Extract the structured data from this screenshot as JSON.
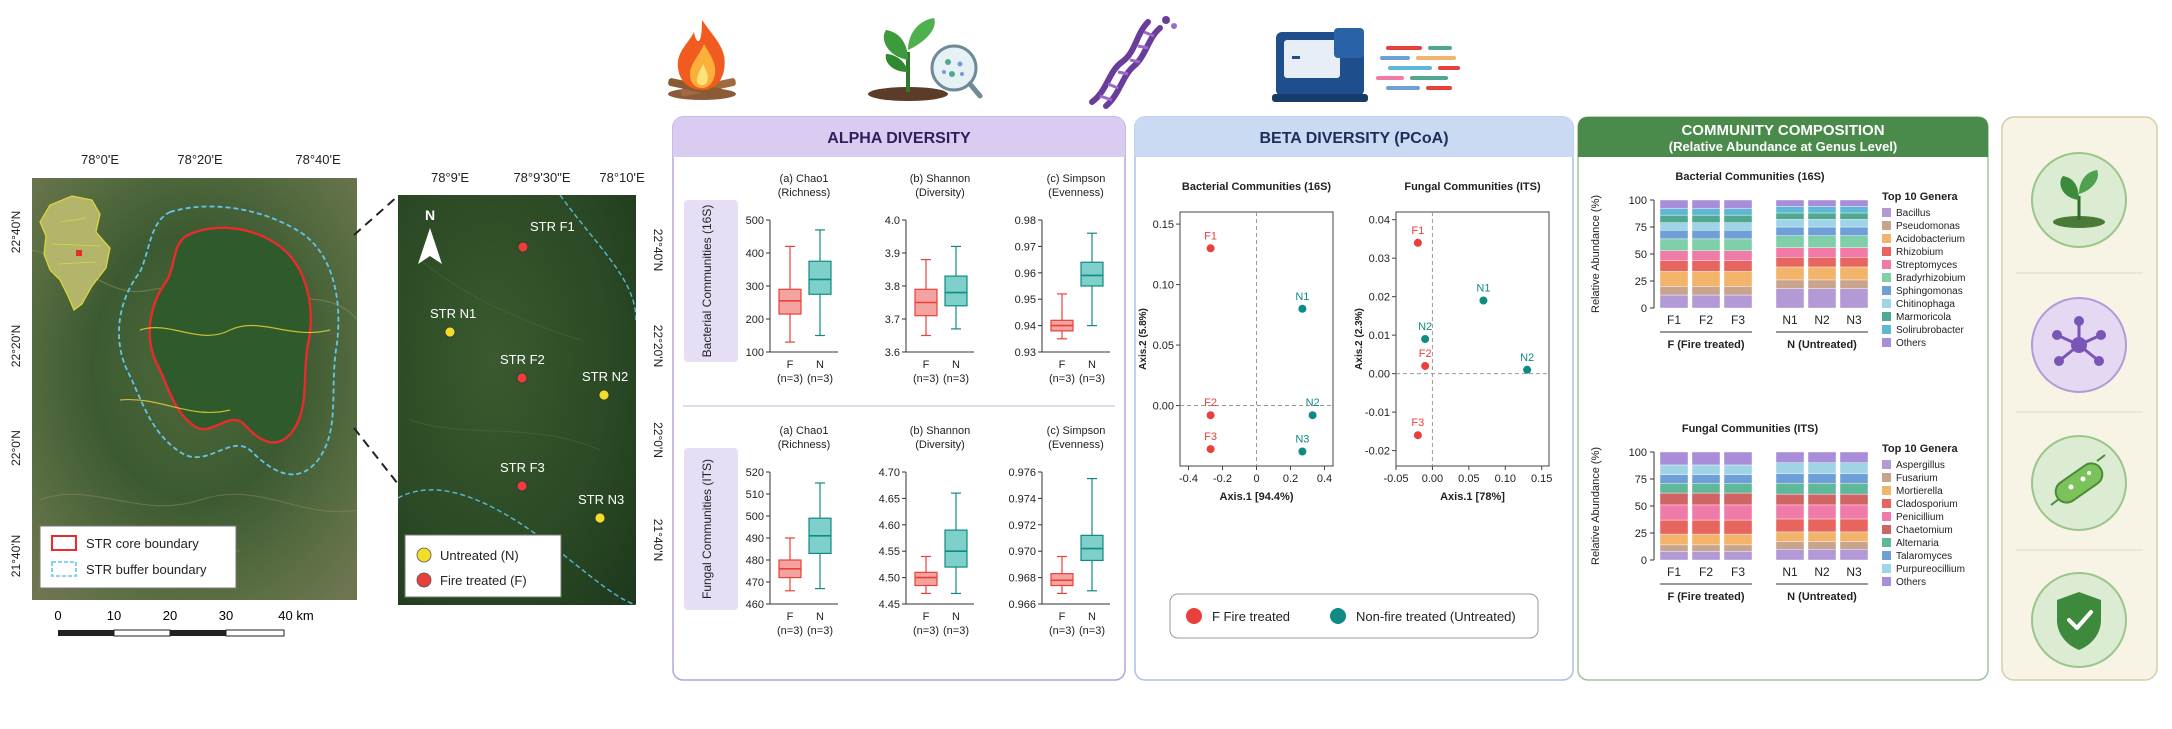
{
  "map_large": {
    "lon_ticks": [
      "78°0'E",
      "78°20'E",
      "78°40'E"
    ],
    "lat_ticks": [
      "22°40'N",
      "22°20'N",
      "22°0'N",
      "21°40'N"
    ],
    "legend": {
      "core": "STR core boundary",
      "buffer": "STR buffer boundary"
    },
    "scalebar": {
      "ticks": [
        "0",
        "10",
        "20",
        "30"
      ],
      "last": "40 km"
    }
  },
  "map_zoom": {
    "lon_ticks": [
      "78°9'E",
      "78°9'30\"E",
      "78°10'E"
    ],
    "lat_ticks": [
      "22°40'N",
      "22°20'N",
      "22°0'N",
      "21°40'N"
    ],
    "north": "N",
    "sites": [
      {
        "label": "STR F1",
        "group": "F"
      },
      {
        "label": "STR N1",
        "group": "N"
      },
      {
        "label": "STR F2",
        "group": "F"
      },
      {
        "label": "STR N2",
        "group": "N"
      },
      {
        "label": "STR F3",
        "group": "F"
      },
      {
        "label": "STR N3",
        "group": "N"
      }
    ],
    "legend": {
      "untreated": "Untreated (N)",
      "fire": "Fire treated (F)"
    }
  },
  "colors": {
    "fire": "#e8403a",
    "fire_box": "#f5a3a0",
    "untreated": "#0f8a84",
    "untreated_box": "#7fcfcb",
    "alpha_bg": "#d9ccf0",
    "beta_bg": "#c9daf2",
    "comm_bg": "#4a8a4a",
    "yellow": "#f2de29"
  },
  "alpha": {
    "title": "ALPHA DIVERSITY",
    "rows": [
      "Bacterial Communities (16S)",
      "Fungal Communities (ITS)"
    ],
    "metric_titles": [
      "(a) Chao1",
      "(b) Shannon",
      "(c) Simpson"
    ],
    "metric_subtitles": [
      "(Richness)",
      "(Diversity)",
      "(Evenness)"
    ],
    "group_labels": [
      "F",
      "N"
    ],
    "n_labels": [
      "(n=3)",
      "(n=3)"
    ],
    "chart_data": [
      {
        "type": "box",
        "title": "(a) Chao1",
        "ylim": [
          100,
          500
        ],
        "ticks": [
          100,
          200,
          300,
          400,
          500
        ],
        "series": [
          {
            "name": "F",
            "min": 130,
            "q1": 215,
            "median": 255,
            "q3": 290,
            "max": 420
          },
          {
            "name": "N",
            "min": 150,
            "q1": 275,
            "median": 320,
            "q3": 375,
            "max": 470
          }
        ]
      },
      {
        "type": "box",
        "title": "(b) Shannon",
        "ylim": [
          3.6,
          4.0
        ],
        "ticks": [
          3.6,
          3.7,
          3.8,
          3.9,
          4.0
        ],
        "series": [
          {
            "name": "F",
            "min": 3.65,
            "q1": 3.71,
            "median": 3.75,
            "q3": 3.79,
            "max": 3.88
          },
          {
            "name": "N",
            "min": 3.67,
            "q1": 3.74,
            "median": 3.78,
            "q3": 3.83,
            "max": 3.92
          }
        ]
      },
      {
        "type": "box",
        "title": "(c) Simpson",
        "ylim": [
          0.93,
          0.98
        ],
        "ticks": [
          0.93,
          0.94,
          0.95,
          0.96,
          0.97,
          0.98
        ],
        "series": [
          {
            "name": "F",
            "min": 0.935,
            "q1": 0.938,
            "median": 0.94,
            "q3": 0.942,
            "max": 0.952
          },
          {
            "name": "N",
            "min": 0.94,
            "q1": 0.955,
            "median": 0.959,
            "q3": 0.964,
            "max": 0.975
          }
        ]
      },
      {
        "type": "box",
        "title": "(a) Chao1",
        "ylim": [
          460,
          520
        ],
        "ticks": [
          460,
          470,
          480,
          490,
          500,
          510,
          520
        ],
        "series": [
          {
            "name": "F",
            "min": 466,
            "q1": 472,
            "median": 476,
            "q3": 480,
            "max": 490
          },
          {
            "name": "N",
            "min": 467,
            "q1": 483,
            "median": 491,
            "q3": 499,
            "max": 515
          }
        ]
      },
      {
        "type": "box",
        "title": "(b) Shannon",
        "ylim": [
          4.45,
          4.7
        ],
        "ticks": [
          4.45,
          4.5,
          4.55,
          4.6,
          4.65,
          4.7
        ],
        "series": [
          {
            "name": "F",
            "min": 4.47,
            "q1": 4.485,
            "median": 4.5,
            "q3": 4.51,
            "max": 4.54
          },
          {
            "name": "N",
            "min": 4.47,
            "q1": 4.52,
            "median": 4.55,
            "q3": 4.59,
            "max": 4.66
          }
        ]
      },
      {
        "type": "box",
        "title": "(c) Simpson",
        "ylim": [
          0.966,
          0.976
        ],
        "ticks": [
          0.966,
          0.968,
          0.97,
          0.972,
          0.974,
          0.976
        ],
        "series": [
          {
            "name": "F",
            "min": 0.9668,
            "q1": 0.9674,
            "median": 0.9678,
            "q3": 0.9683,
            "max": 0.9696
          },
          {
            "name": "N",
            "min": 0.967,
            "q1": 0.9693,
            "median": 0.9702,
            "q3": 0.9712,
            "max": 0.9755
          }
        ]
      }
    ]
  },
  "beta": {
    "title": "BETA DIVERSITY (PCoA)",
    "chart_data": [
      {
        "type": "scatter",
        "title": "Bacterial Communities (16S)",
        "xlabel": "Axis.1   [94.4%)",
        "ylabel": "Axis.2  (5.8%)",
        "xlim": [
          -0.45,
          0.45
        ],
        "ylim": [
          -0.05,
          0.16
        ],
        "xticks": [
          -0.4,
          -0.2,
          0,
          0.2,
          0.4
        ],
        "xtick_labels": [
          "-0.4",
          "-0.2",
          "0",
          "0.2",
          "0.4"
        ],
        "yticks": [
          0,
          0.05,
          0.1,
          0.15
        ],
        "ytick_labels": [
          "0.00",
          "0.05",
          "0.10",
          "0.15"
        ],
        "points": [
          {
            "label": "F1",
            "x": -0.27,
            "y": 0.13,
            "group": "F"
          },
          {
            "label": "N1",
            "x": 0.27,
            "y": 0.08,
            "group": "N"
          },
          {
            "label": "F2",
            "x": -0.27,
            "y": -0.008,
            "group": "F"
          },
          {
            "label": "N2",
            "x": 0.33,
            "y": -0.008,
            "group": "N"
          },
          {
            "label": "F3",
            "x": -0.27,
            "y": -0.036,
            "group": "F"
          },
          {
            "label": "N3",
            "x": 0.27,
            "y": -0.038,
            "group": "N"
          }
        ]
      },
      {
        "type": "scatter",
        "title": "Fungal Communities (ITS)",
        "xlabel": "Axis.1   [78%]",
        "ylabel": "Axis.2  (2.3%)",
        "xlim": [
          -0.05,
          0.16
        ],
        "ylim": [
          -0.024,
          0.042
        ],
        "xticks": [
          -0.05,
          0,
          0.05,
          0.1,
          0.15
        ],
        "xtick_labels": [
          "-0.05",
          "0.00",
          "0.05",
          "0.10",
          "0.15"
        ],
        "yticks": [
          -0.02,
          -0.01,
          0,
          0.01,
          0.02,
          0.03,
          0.04
        ],
        "ytick_labels": [
          "-0.02",
          "-0.01",
          "0.00",
          "0.01",
          "0.02",
          "0.03",
          "0.04"
        ],
        "points": [
          {
            "label": "F1",
            "x": -0.02,
            "y": 0.034,
            "group": "F"
          },
          {
            "label": "N1",
            "x": 0.07,
            "y": 0.019,
            "group": "N"
          },
          {
            "label": "N2",
            "x": -0.01,
            "y": 0.009,
            "group": "N"
          },
          {
            "label": "F2",
            "x": -0.01,
            "y": 0.002,
            "group": "F"
          },
          {
            "label": "N2",
            "x": 0.13,
            "y": 0.001,
            "group": "N"
          },
          {
            "label": "F3",
            "x": -0.02,
            "y": -0.016,
            "group": "F"
          }
        ]
      }
    ],
    "legend": {
      "fire": "F  Fire treated",
      "untreated": "Non-fire treated (Untreated)"
    }
  },
  "composition": {
    "title": "COMMUNITY COMPOSITION",
    "subtitle": "(Relative Abundance at Genus Level)",
    "ylabel": "Relative Abundance (%)",
    "yticks": [
      0,
      25,
      50,
      75,
      100
    ],
    "samples": [
      "F1",
      "F2",
      "F3",
      "N1",
      "N2",
      "N3"
    ],
    "group_labels": [
      "F (Fire treated)",
      "N (Untreated)"
    ],
    "legend_title": "Top 10 Genera",
    "chart_data": [
      {
        "type": "bar",
        "stacked": true,
        "title": "Bacterial Communities (16S)",
        "categories": [
          "F1",
          "F2",
          "F3",
          "N1",
          "N2",
          "N3"
        ],
        "series": [
          {
            "name": "Bacillus",
            "color": "#b39ad6",
            "values": [
              12,
              12,
              12,
              18,
              18,
              18
            ]
          },
          {
            "name": "Pseudomonas",
            "color": "#c9a48c",
            "values": [
              8,
              8,
              8,
              8,
              8,
              8
            ]
          },
          {
            "name": "Acidobacterium",
            "color": "#f2b36b",
            "values": [
              14,
              14,
              14,
              12,
              12,
              12
            ]
          },
          {
            "name": "Rhizobium",
            "color": "#e8645f",
            "values": [
              10,
              10,
              10,
              9,
              9,
              9
            ]
          },
          {
            "name": "Streptomyces",
            "color": "#f07aa8",
            "values": [
              9,
              9,
              9,
              9,
              9,
              9
            ]
          },
          {
            "name": "Bradyrhizobium",
            "color": "#7fcfa8",
            "values": [
              11,
              11,
              11,
              11,
              11,
              11
            ]
          },
          {
            "name": "Sphingomonas",
            "color": "#6f9fd8",
            "values": [
              8,
              8,
              8,
              8,
              8,
              8
            ]
          },
          {
            "name": "Chitinophaga",
            "color": "#9fd4e6",
            "values": [
              7,
              7,
              7,
              7,
              7,
              7
            ]
          },
          {
            "name": "Marmoricola",
            "color": "#4fa88f",
            "values": [
              7,
              7,
              7,
              6,
              6,
              6
            ]
          },
          {
            "name": "Solirubrobacter",
            "color": "#5db8d6",
            "values": [
              6,
              6,
              6,
              6,
              6,
              6
            ]
          },
          {
            "name": "Others",
            "color": "#a88ed8",
            "values": [
              8,
              8,
              8,
              6,
              6,
              6
            ]
          }
        ]
      },
      {
        "type": "bar",
        "stacked": true,
        "title": "Fungal Communities (ITS)",
        "categories": [
          "F1",
          "F2",
          "F3",
          "N1",
          "N2",
          "N3"
        ],
        "series": [
          {
            "name": "Aspergillus",
            "color": "#b39ad6",
            "values": [
              8,
              8,
              8,
              10,
              10,
              10
            ]
          },
          {
            "name": "Fusarium",
            "color": "#c9a48c",
            "values": [
              6,
              6,
              6,
              7,
              7,
              7
            ]
          },
          {
            "name": "Mortierella",
            "color": "#f2b36b",
            "values": [
              10,
              10,
              10,
              9,
              9,
              9
            ]
          },
          {
            "name": "Cladosporium",
            "color": "#e8645f",
            "values": [
              13,
              13,
              13,
              12,
              12,
              12
            ]
          },
          {
            "name": "Penicillium",
            "color": "#f07aa8",
            "values": [
              14,
              14,
              14,
              13,
              13,
              13
            ]
          },
          {
            "name": "Chaetomium",
            "color": "#d06464",
            "values": [
              11,
              11,
              11,
              10,
              10,
              10
            ]
          },
          {
            "name": "Alternaria",
            "color": "#5fb89a",
            "values": [
              9,
              9,
              9,
              10,
              10,
              10
            ]
          },
          {
            "name": "Talaromyces",
            "color": "#6f9fd8",
            "values": [
              8,
              8,
              8,
              9,
              9,
              9
            ]
          },
          {
            "name": "Purpureocillium",
            "color": "#9fd4e6",
            "values": [
              9,
              9,
              9,
              10,
              10,
              10
            ]
          },
          {
            "name": "Others",
            "color": "#a88ed8",
            "values": [
              12,
              12,
              12,
              10,
              10,
              10
            ]
          }
        ]
      }
    ]
  },
  "icons": {
    "top": [
      "fire-icon",
      "plant-microbe-icon",
      "dna-icon",
      "sequencer-icon"
    ],
    "side": [
      "plant-soil-icon",
      "network-icon",
      "microbe-icon",
      "shield-check-icon"
    ]
  }
}
